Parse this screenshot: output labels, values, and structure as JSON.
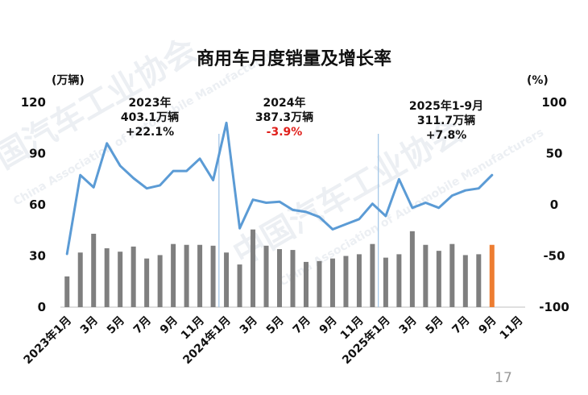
{
  "chart_data": {
    "type": "bar+line",
    "title": "商用车月度销量及增长率",
    "y_left_unit": "(万辆)",
    "y_right_unit": "(%)",
    "y_left_range": [
      0,
      120
    ],
    "y_left_ticks": [
      "0",
      "30",
      "60",
      "90",
      "120"
    ],
    "y_right_range": [
      -100,
      100
    ],
    "y_right_ticks": [
      "-100",
      "-50",
      "0",
      "50",
      "100"
    ],
    "x_tick_labels": [
      "2023年1月",
      "3月",
      "5月",
      "7月",
      "9月",
      "11月",
      "2024年1月",
      "3月",
      "5月",
      "7月",
      "9月",
      "11月",
      "2025年1月",
      "3月",
      "5月",
      "7月",
      "9月",
      "11月"
    ],
    "months": 35,
    "sales": [
      18,
      32,
      43,
      34.5,
      32.5,
      35.5,
      28.5,
      30.5,
      37,
      36.5,
      36.5,
      36,
      32,
      25,
      45.5,
      36,
      34,
      33.5,
      26.5,
      27,
      28.5,
      30,
      31,
      37,
      29,
      31,
      44.5,
      36.5,
      33,
      37,
      30.5,
      31,
      36.5
    ],
    "growth": [
      -48,
      29,
      17,
      60,
      38,
      26,
      16,
      19,
      33,
      33,
      45,
      24,
      80,
      -23,
      5,
      2,
      3,
      -5,
      -7,
      -12,
      -24,
      -19,
      -14,
      1,
      -11,
      25,
      -3,
      2,
      -3,
      9,
      14,
      16,
      29
    ],
    "highlight_index": 32,
    "colors": {
      "bar": "#7f7f7f",
      "bar_highlight": "#ed7d31",
      "line": "#5b9bd5",
      "divider": "#9dc3e6"
    },
    "dividers_after_month": [
      12,
      24
    ],
    "annotations": [
      {
        "year": "2023年",
        "total": "403.1万辆",
        "growth": "+22.1%"
      },
      {
        "year": "2024年",
        "total": "387.3万辆",
        "growth": "-3.9%"
      },
      {
        "year": "2025年1-9月",
        "total": "311.7万辆",
        "growth": "+7.8%"
      }
    ]
  },
  "page_number": "17",
  "watermark": {
    "cn": "中国汽车工业协会",
    "en": "China Association of Automobile Manufacturers"
  }
}
